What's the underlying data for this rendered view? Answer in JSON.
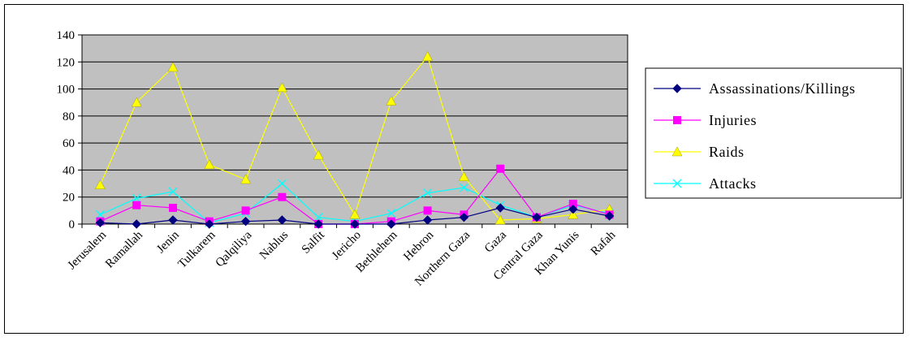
{
  "chart_data": {
    "type": "line",
    "title": "",
    "xlabel": "",
    "ylabel": "",
    "ylim": [
      0,
      140
    ],
    "yticks": [
      0,
      20,
      40,
      60,
      80,
      100,
      120,
      140
    ],
    "grid": true,
    "legend_position": "right",
    "plot_background": "#c0c0c0",
    "categories": [
      "Jerusalem",
      "Ramallah",
      "Jenin",
      "Tulkarem",
      "Qalqiliya",
      "Nablus",
      "Salfit",
      "Jericho",
      "Bethlehem",
      "Hebron",
      "Northern Gaza",
      "Gaza",
      "Central Gaza",
      "Khan Yunis",
      "Rafah"
    ],
    "series": [
      {
        "name": "Assassinations/Killings",
        "color": "#000080",
        "marker": "diamond",
        "values": [
          1,
          0,
          3,
          0,
          2,
          3,
          0,
          0,
          0,
          3,
          5,
          12,
          5,
          11,
          6
        ]
      },
      {
        "name": "Injuries",
        "color": "#ff00ff",
        "marker": "square",
        "values": [
          2,
          14,
          12,
          2,
          10,
          20,
          0,
          0,
          2,
          10,
          7,
          41,
          5,
          15,
          7
        ]
      },
      {
        "name": "Raids",
        "color": "#ffff00",
        "marker": "triangle",
        "values": [
          29,
          90,
          116,
          44,
          33,
          101,
          51,
          7,
          91,
          124,
          35,
          3,
          4,
          7,
          11
        ]
      },
      {
        "name": "Attacks",
        "color": "#00ffff",
        "marker": "x",
        "values": [
          7,
          19,
          24,
          1,
          8,
          30,
          5,
          2,
          8,
          23,
          27,
          14,
          5,
          14,
          8
        ]
      }
    ]
  }
}
